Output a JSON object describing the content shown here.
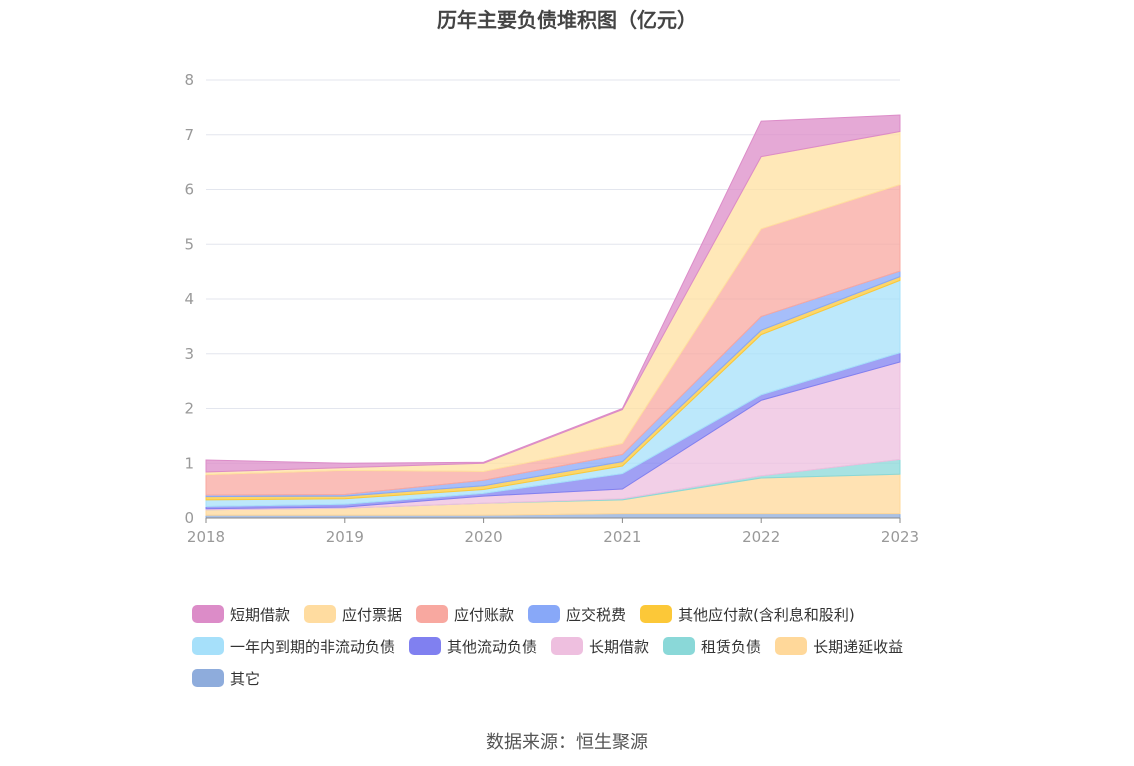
{
  "title": "历年主要负债堆积图（亿元）",
  "source": "数据来源：恒生聚源",
  "chart_data": {
    "type": "area",
    "stacked": true,
    "x": [
      "2018",
      "2019",
      "2020",
      "2021",
      "2022",
      "2023"
    ],
    "ylim": [
      0,
      8
    ],
    "yticks": [
      "0",
      "1",
      "2",
      "3",
      "4",
      "5",
      "6",
      "7",
      "8"
    ],
    "grid": true,
    "legend_position": "bottom",
    "series": [
      {
        "name": "其它",
        "color": "#8eacdc",
        "values": [
          0.05,
          0.05,
          0.05,
          0.08,
          0.08,
          0.08
        ]
      },
      {
        "name": "长期递延收益",
        "color": "#ffd89a",
        "values": [
          0.1,
          0.13,
          0.22,
          0.25,
          0.65,
          0.72
        ]
      },
      {
        "name": "租赁负债",
        "color": "#8ad8d8",
        "values": [
          0.0,
          0.0,
          0.0,
          0.02,
          0.04,
          0.27
        ]
      },
      {
        "name": "长期借款",
        "color": "#eebfdf",
        "values": [
          0.02,
          0.02,
          0.13,
          0.18,
          1.38,
          1.78
        ]
      },
      {
        "name": "其他流动负债",
        "color": "#8080f0",
        "values": [
          0.04,
          0.05,
          0.05,
          0.28,
          0.1,
          0.17
        ]
      },
      {
        "name": "一年内到期的非流动负债",
        "color": "#a6e0fa",
        "values": [
          0.12,
          0.1,
          0.07,
          0.14,
          1.1,
          1.32
        ]
      },
      {
        "name": "其他应付款(含利息和股利)",
        "color": "#fcc838",
        "values": [
          0.06,
          0.05,
          0.07,
          0.08,
          0.08,
          0.07
        ]
      },
      {
        "name": "应交税费",
        "color": "#88a8f8",
        "values": [
          0.03,
          0.03,
          0.1,
          0.13,
          0.25,
          0.1
        ]
      },
      {
        "name": "应付账款",
        "color": "#f8a8a0",
        "values": [
          0.37,
          0.44,
          0.16,
          0.2,
          1.6,
          1.58
        ]
      },
      {
        "name": "应付票据",
        "color": "#ffe0a0",
        "values": [
          0.05,
          0.05,
          0.15,
          0.62,
          1.32,
          0.97
        ]
      },
      {
        "name": "短期借款",
        "color": "#dc8cc8",
        "values": [
          0.22,
          0.08,
          0.02,
          0.02,
          0.65,
          0.3
        ]
      }
    ]
  },
  "legend": [
    [
      {
        "name": "短期借款",
        "color": "#dc8cc8"
      },
      {
        "name": "应付票据",
        "color": "#ffdca0"
      },
      {
        "name": "应付账款",
        "color": "#f8a8a0"
      },
      {
        "name": "应交税费",
        "color": "#88a8f8"
      },
      {
        "name": "其他应付款(含利息和股利)",
        "color": "#fcc838"
      }
    ],
    [
      {
        "name": "一年内到期的非流动负债",
        "color": "#a6e0fa"
      },
      {
        "name": "其他流动负债",
        "color": "#8080f0"
      },
      {
        "name": "长期借款",
        "color": "#eebfdf"
      },
      {
        "name": "租赁负债",
        "color": "#8ad8d8"
      },
      {
        "name": "长期递延收益",
        "color": "#ffd89a"
      }
    ],
    [
      {
        "name": "其它",
        "color": "#8eacdc"
      }
    ]
  ]
}
